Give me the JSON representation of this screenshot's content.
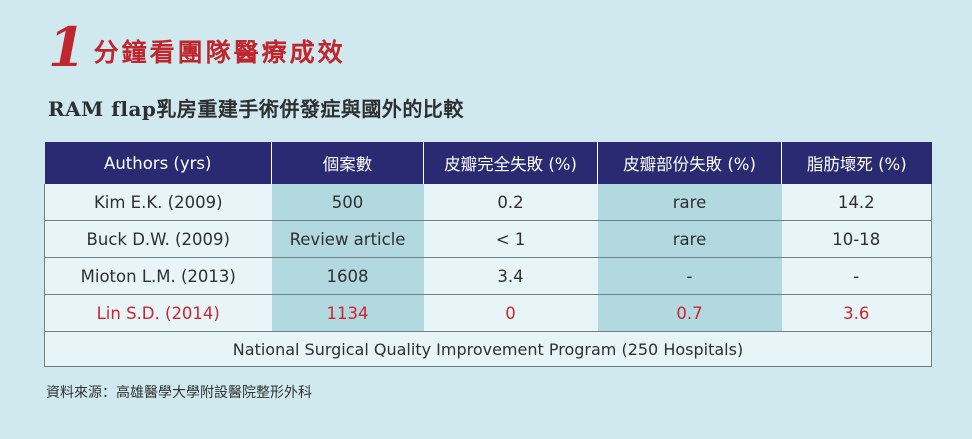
{
  "title": {
    "number": "1",
    "text": "分鐘看團隊醫療成效"
  },
  "subtitle": "RAM flap乳房重建手術併發症與國外的比較",
  "table": {
    "headers": [
      "Authors (yrs)",
      "個案數",
      "皮瓣完全失敗 (%)",
      "皮瓣部份失敗 (%)",
      "脂肪壞死 (%)"
    ],
    "rows": [
      [
        "Kim E.K. (2009)",
        "500",
        "0.2",
        "rare",
        "14.2"
      ],
      [
        "Buck D.W. (2009)",
        "Review article",
        "< 1",
        "rare",
        "10-18"
      ],
      [
        "Mioton L.M. (2013)",
        "1608",
        "3.4",
        "-",
        "-"
      ],
      [
        "Lin S.D. (2014)",
        "1134",
        "0",
        "0.7",
        "3.6"
      ]
    ],
    "footer": "National Surgical Quality Improvement Program (250 Hospitals)"
  },
  "source": "資料來源：高雄醫學大學附設醫院整形外科",
  "colors": {
    "background": "#cfe9ee",
    "header": "#2a2a72",
    "accent_red": "#c0262d",
    "shade_column": "#b1d9df"
  }
}
